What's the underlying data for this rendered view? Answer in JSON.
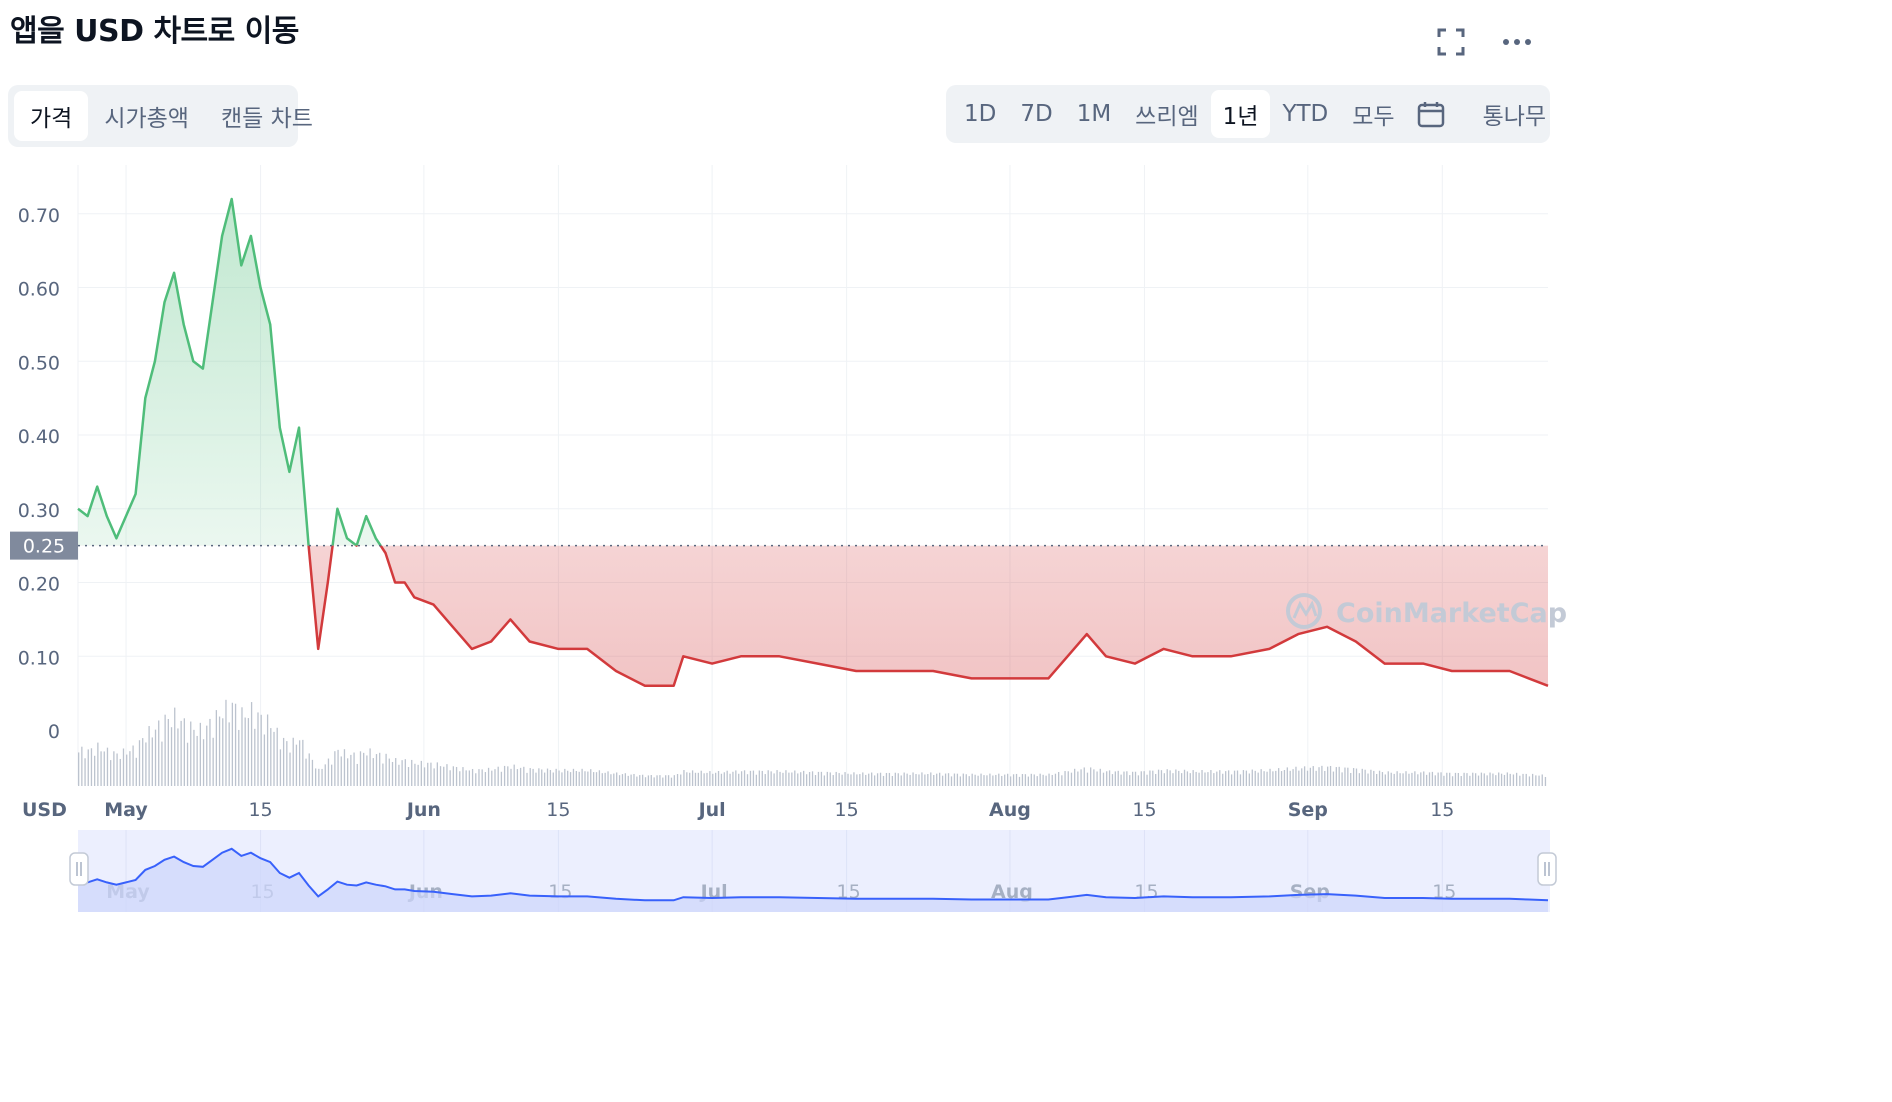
{
  "header": {
    "title": "앱을 USD 차트로 이동",
    "fullscreen_icon": "fullscreen-icon",
    "more_icon": "more-horizontal-icon"
  },
  "chart_type_tabs": [
    {
      "label": "가격",
      "active": true
    },
    {
      "label": "시가총액",
      "active": false
    },
    {
      "label": "캔들 차트",
      "active": false
    }
  ],
  "range_tabs": [
    {
      "label": "1D",
      "active": false
    },
    {
      "label": "7D",
      "active": false
    },
    {
      "label": "1M",
      "active": false
    },
    {
      "label": "쓰리엠",
      "active": false
    },
    {
      "label": "1년",
      "active": true
    },
    {
      "label": "YTD",
      "active": false
    },
    {
      "label": "모두",
      "active": false
    }
  ],
  "calendar_icon": "calendar-icon",
  "log_label": "통나무",
  "watermark": "CoinMarketCap",
  "colors": {
    "up": "#4fbd7a",
    "down": "#d23a3c",
    "volume": "#bcc3ce",
    "navigator_line": "#3861fb",
    "navigator_bg": "#eceffe",
    "grid": "#eff2f5",
    "baseline_label_bg": "#808a9d"
  },
  "chart_data": {
    "type": "area",
    "ylabel": "USD",
    "y_ticks": [
      "0",
      "0.10",
      "0.20",
      "0.30",
      "0.40",
      "0.50",
      "0.60",
      "0.70"
    ],
    "ylim": [
      0,
      0.75
    ],
    "baseline": 0.25,
    "baseline_label": "0.25",
    "x_labels": [
      "May",
      "15",
      "Jun",
      "15",
      "Jul",
      "15",
      "Aug",
      "15",
      "Sep",
      "15"
    ],
    "x_label_dates": [
      "2023-05-01",
      "2023-05-15",
      "2023-06-01",
      "2023-06-15",
      "2023-07-01",
      "2023-07-15",
      "2023-08-01",
      "2023-08-15",
      "2023-09-01",
      "2023-09-15"
    ],
    "x_range": [
      "2023-04-26",
      "2023-09-26"
    ],
    "series": [
      {
        "values": [
          [
            "2023-04-26",
            0.3
          ],
          [
            "2023-04-27",
            0.29
          ],
          [
            "2023-04-28",
            0.33
          ],
          [
            "2023-04-29",
            0.29
          ],
          [
            "2023-04-30",
            0.26
          ],
          [
            "2023-05-01",
            0.29
          ],
          [
            "2023-05-02",
            0.32
          ],
          [
            "2023-05-03",
            0.45
          ],
          [
            "2023-05-04",
            0.5
          ],
          [
            "2023-05-05",
            0.58
          ],
          [
            "2023-05-06",
            0.62
          ],
          [
            "2023-05-07",
            0.55
          ],
          [
            "2023-05-08",
            0.5
          ],
          [
            "2023-05-09",
            0.49
          ],
          [
            "2023-05-10",
            0.58
          ],
          [
            "2023-05-11",
            0.67
          ],
          [
            "2023-05-12",
            0.72
          ],
          [
            "2023-05-13",
            0.63
          ],
          [
            "2023-05-14",
            0.67
          ],
          [
            "2023-05-15",
            0.6
          ],
          [
            "2023-05-16",
            0.55
          ],
          [
            "2023-05-17",
            0.41
          ],
          [
            "2023-05-18",
            0.35
          ],
          [
            "2023-05-19",
            0.41
          ],
          [
            "2023-05-20",
            0.25
          ],
          [
            "2023-05-21",
            0.11
          ],
          [
            "2023-05-22",
            0.2
          ],
          [
            "2023-05-23",
            0.3
          ],
          [
            "2023-05-24",
            0.26
          ],
          [
            "2023-05-25",
            0.25
          ],
          [
            "2023-05-26",
            0.29
          ],
          [
            "2023-05-27",
            0.26
          ],
          [
            "2023-05-28",
            0.24
          ],
          [
            "2023-05-29",
            0.2
          ],
          [
            "2023-05-30",
            0.2
          ],
          [
            "2023-05-31",
            0.18
          ],
          [
            "2023-06-02",
            0.17
          ],
          [
            "2023-06-04",
            0.14
          ],
          [
            "2023-06-06",
            0.11
          ],
          [
            "2023-06-08",
            0.12
          ],
          [
            "2023-06-10",
            0.15
          ],
          [
            "2023-06-12",
            0.12
          ],
          [
            "2023-06-15",
            0.11
          ],
          [
            "2023-06-18",
            0.11
          ],
          [
            "2023-06-21",
            0.08
          ],
          [
            "2023-06-24",
            0.06
          ],
          [
            "2023-06-27",
            0.06
          ],
          [
            "2023-06-28",
            0.1
          ],
          [
            "2023-07-01",
            0.09
          ],
          [
            "2023-07-04",
            0.1
          ],
          [
            "2023-07-08",
            0.1
          ],
          [
            "2023-07-12",
            0.09
          ],
          [
            "2023-07-16",
            0.08
          ],
          [
            "2023-07-20",
            0.08
          ],
          [
            "2023-07-24",
            0.08
          ],
          [
            "2023-07-28",
            0.07
          ],
          [
            "2023-08-01",
            0.07
          ],
          [
            "2023-08-05",
            0.07
          ],
          [
            "2023-08-07",
            0.1
          ],
          [
            "2023-08-09",
            0.13
          ],
          [
            "2023-08-11",
            0.1
          ],
          [
            "2023-08-14",
            0.09
          ],
          [
            "2023-08-17",
            0.11
          ],
          [
            "2023-08-20",
            0.1
          ],
          [
            "2023-08-24",
            0.1
          ],
          [
            "2023-08-28",
            0.11
          ],
          [
            "2023-08-31",
            0.13
          ],
          [
            "2023-09-03",
            0.14
          ],
          [
            "2023-09-06",
            0.12
          ],
          [
            "2023-09-09",
            0.09
          ],
          [
            "2023-09-13",
            0.09
          ],
          [
            "2023-09-16",
            0.08
          ],
          [
            "2023-09-19",
            0.08
          ],
          [
            "2023-09-22",
            0.08
          ],
          [
            "2023-09-24",
            0.07
          ],
          [
            "2023-09-26",
            0.06
          ]
        ]
      }
    ],
    "grid": true,
    "legend": "none"
  }
}
